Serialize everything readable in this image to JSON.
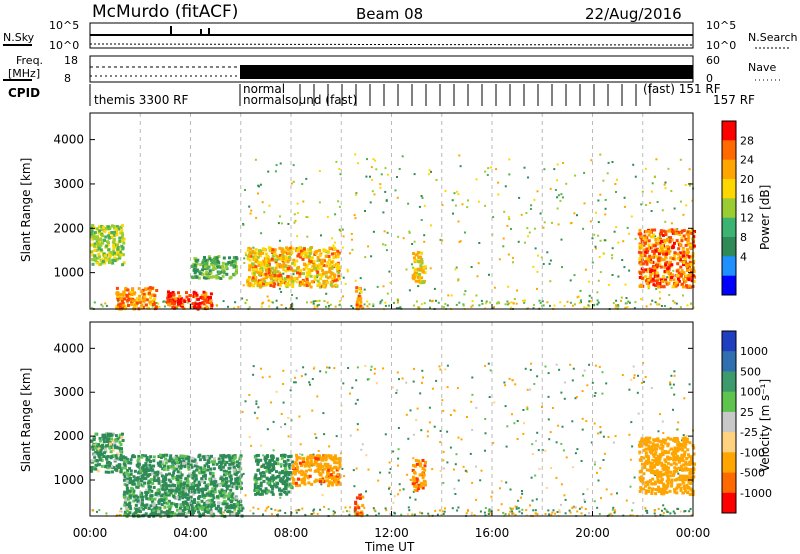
{
  "header": {
    "station": "McMurdo (fitACF)",
    "beam": "Beam 08",
    "date": "22/Aug/2016"
  },
  "noise_panel": {
    "left_label": "N.Sky",
    "right_label": "N.Search",
    "left_ticks": [
      "10^5",
      "10^0"
    ],
    "right_ticks": [
      "10^5",
      "10^0"
    ]
  },
  "freq_panel": {
    "left_label_1": "Freq.",
    "left_label_2": "[MHz]",
    "right_label": "Nave",
    "left_ticks": [
      "18",
      "8"
    ],
    "right_ticks": [
      "60",
      "0"
    ]
  },
  "cpid_row": {
    "label": "CPID",
    "text_1": "themis 3300 RF",
    "text_2a": "normal",
    "text_2b": "normalsound (fast)",
    "text_3": "(fast) 151 RF",
    "text_4": "157 RF"
  },
  "power_panel": {
    "ylabel": "Slant Range [km]",
    "colorbar_label": "Power [dB]",
    "colorbar_ticks": [
      "28",
      "24",
      "20",
      "16",
      "12",
      "8",
      "4"
    ],
    "colorbar_colors": [
      "#ff0000",
      "#ff6a00",
      "#ffa500",
      "#ffd700",
      "#9acd32",
      "#3cb371",
      "#2e8b57",
      "#1e90ff",
      "#0000ff"
    ]
  },
  "velocity_panel": {
    "ylabel": "Slant Range [km]",
    "colorbar_label": "Velocity [m s⁻¹]",
    "colorbar_ticks": [
      "1000",
      "500",
      "100",
      "25",
      "-25",
      "-100",
      "-500",
      "-1000"
    ],
    "colorbar_colors": [
      "#1f3fc0",
      "#2f6fb0",
      "#3c9a6c",
      "#5ec44e",
      "#c8c8c8",
      "#ffd27f",
      "#ffa500",
      "#ff6a00",
      "#ff0000"
    ]
  },
  "x_axis": {
    "label": "Time UT",
    "ticks": [
      "00:00",
      "04:00",
      "08:00",
      "12:00",
      "16:00",
      "20:00",
      "00:00"
    ]
  },
  "chart_data": [
    {
      "type": "heatmap",
      "title": "Power",
      "xlabel": "Time UT",
      "ylabel": "Slant Range [km]",
      "x_range_hours": [
        0,
        24
      ],
      "ylim": [
        180,
        4600
      ],
      "y_ticks": [
        1000,
        2000,
        3000,
        4000
      ],
      "colorbar": {
        "label": "Power [dB]",
        "range": [
          0,
          32
        ],
        "ticks": [
          4,
          8,
          12,
          16,
          20,
          24,
          28
        ]
      },
      "regions": [
        {
          "t_start": 0.0,
          "t_end": 1.3,
          "r_start": 1200,
          "r_end": 2100,
          "value": 14
        },
        {
          "t_start": 1.0,
          "t_end": 2.6,
          "r_start": 200,
          "r_end": 700,
          "value": 22
        },
        {
          "t_start": 3.0,
          "t_end": 4.8,
          "r_start": 200,
          "r_end": 600,
          "value": 28
        },
        {
          "t_start": 4.0,
          "t_end": 5.8,
          "r_start": 900,
          "r_end": 1400,
          "value": 10
        },
        {
          "t_start": 6.2,
          "t_end": 9.9,
          "r_start": 700,
          "r_end": 1600,
          "value": 20
        },
        {
          "t_start": 10.5,
          "t_end": 10.8,
          "r_start": 200,
          "r_end": 700,
          "value": 22
        },
        {
          "t_start": 12.8,
          "t_end": 13.3,
          "r_start": 800,
          "r_end": 1500,
          "value": 18
        },
        {
          "t_start": 21.8,
          "t_end": 24.0,
          "r_start": 700,
          "r_end": 2000,
          "value": 24
        }
      ]
    },
    {
      "type": "heatmap",
      "title": "Velocity",
      "xlabel": "Time UT",
      "ylabel": "Slant Range [km]",
      "x_range_hours": [
        0,
        24
      ],
      "ylim": [
        180,
        4600
      ],
      "y_ticks": [
        1000,
        2000,
        3000,
        4000
      ],
      "colorbar": {
        "label": "Velocity [m s⁻¹]",
        "range": [
          -1000,
          1000
        ],
        "ticks": [
          1000,
          500,
          100,
          25,
          -25,
          -100,
          -500,
          -1000
        ]
      },
      "regions": [
        {
          "t_start": 0.0,
          "t_end": 1.3,
          "r_start": 1200,
          "r_end": 2100,
          "value": 150
        },
        {
          "t_start": 1.3,
          "t_end": 6.0,
          "r_start": 200,
          "r_end": 1600,
          "value": 200
        },
        {
          "t_start": 6.5,
          "t_end": 8.0,
          "r_start": 700,
          "r_end": 1600,
          "value": 250
        },
        {
          "t_start": 8.0,
          "t_end": 9.9,
          "r_start": 900,
          "r_end": 1600,
          "value": -350
        },
        {
          "t_start": 10.5,
          "t_end": 10.8,
          "r_start": 200,
          "r_end": 700,
          "value": -500
        },
        {
          "t_start": 12.8,
          "t_end": 13.3,
          "r_start": 800,
          "r_end": 1500,
          "value": -400
        },
        {
          "t_start": 21.8,
          "t_end": 24.0,
          "r_start": 700,
          "r_end": 2000,
          "value": -300
        }
      ]
    }
  ]
}
